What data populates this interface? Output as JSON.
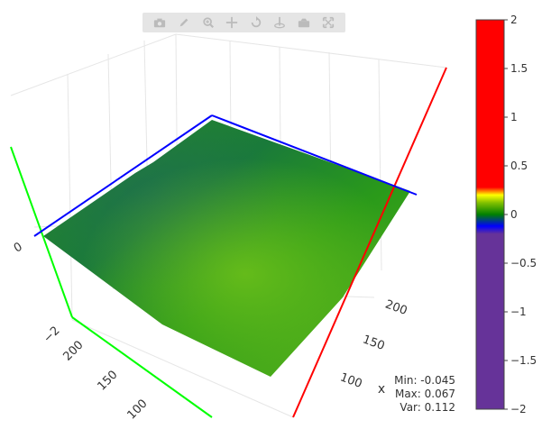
{
  "toolbar": {
    "buttons": [
      {
        "name": "camera-icon",
        "label": "Download plot as png"
      },
      {
        "name": "pencil-icon",
        "label": "Edit"
      },
      {
        "name": "zoom-icon",
        "label": "Zoom"
      },
      {
        "name": "pan-icon",
        "label": "Pan"
      },
      {
        "name": "orbit-rotation-icon",
        "label": "Orbital rotation"
      },
      {
        "name": "turntable-icon",
        "label": "Turntable rotation"
      },
      {
        "name": "reset-camera-icon",
        "label": "Reset camera"
      },
      {
        "name": "autoscale-icon",
        "label": "Autoscale"
      }
    ]
  },
  "chart_data": {
    "type": "surface",
    "title": "",
    "axes": {
      "x": {
        "title": "x",
        "ticks": [
          "100",
          "150",
          "200"
        ],
        "color": "#ff0000"
      },
      "y": {
        "title": "",
        "ticks": [
          "100",
          "150",
          "200"
        ],
        "color": "#00ff00"
      },
      "z": {
        "title": "",
        "ticks": [
          "−2",
          "0"
        ],
        "color": "#0000ff"
      }
    },
    "colorbar": {
      "range": [
        -2,
        2
      ],
      "ticks": [
        "2",
        "1.5",
        "1",
        "0.5",
        "0",
        "−0.5",
        "−1",
        "−1.5",
        "−2"
      ],
      "colorscale": [
        [
          0.0,
          "#663399"
        ],
        [
          0.45,
          "#663399"
        ],
        [
          0.47,
          "#0000ff"
        ],
        [
          0.5,
          "#008000"
        ],
        [
          0.53,
          "#80c000"
        ],
        [
          0.55,
          "#ffff00"
        ],
        [
          0.57,
          "#ff0000"
        ],
        [
          1.0,
          "#ff0000"
        ]
      ]
    },
    "surface_color_range": {
      "min_color": "#1a7a2a",
      "max_color": "#6bbf1a"
    },
    "stats": {
      "min_label": "Min: -0.045",
      "max_label": "Max: 0.067",
      "var_label": "Var: 0.112"
    }
  }
}
